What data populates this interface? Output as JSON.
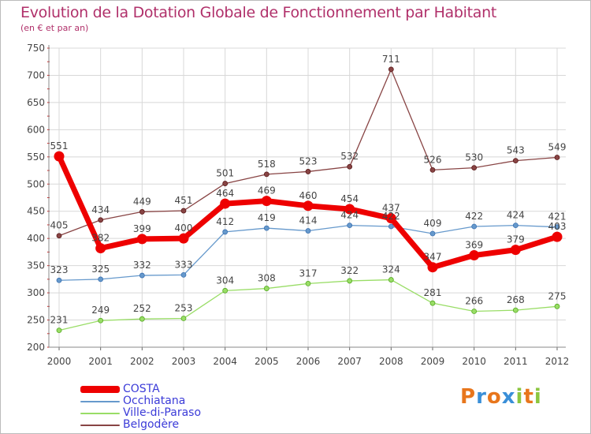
{
  "header": {
    "title": "Evolution de la Dotation Globale de Fonctionnement par Habitant",
    "subtitle": "(en € et par an)"
  },
  "logo": {
    "text": "Proxiti"
  },
  "colors": {
    "title": "#b0306a",
    "legend_text": "#3b3bd8",
    "grid": "#d8d8d8",
    "axis_tick_red": "#cc2222"
  },
  "chart_data": {
    "type": "line",
    "title": "Evolution de la Dotation Globale de Fonctionnement par Habitant",
    "subtitle": "(en € et par an)",
    "xlabel": "",
    "ylabel": "",
    "ylim": [
      200,
      750
    ],
    "yticks": [
      200,
      250,
      300,
      350,
      400,
      450,
      500,
      550,
      600,
      650,
      700,
      750
    ],
    "grid": true,
    "legend_position": "bottom-left",
    "x": [
      "2000",
      "2001",
      "2002",
      "2003",
      "2004",
      "2005",
      "2006",
      "2007",
      "2008",
      "2009",
      "2010",
      "2011",
      "2012"
    ],
    "series": [
      {
        "name": "COSTA",
        "color": "#ee0000",
        "values": [
          551,
          382,
          399,
          400,
          464,
          469,
          460,
          454,
          437,
          347,
          369,
          379,
          403
        ],
        "bold": true
      },
      {
        "name": "Occhiatana",
        "color": "#6699cc",
        "values": [
          323,
          325,
          332,
          333,
          412,
          419,
          414,
          424,
          422,
          409,
          422,
          424,
          421
        ]
      },
      {
        "name": "Ville-di-Paraso",
        "color": "#99dd66",
        "values": [
          231,
          249,
          252,
          253,
          304,
          308,
          317,
          322,
          324,
          281,
          266,
          268,
          275
        ]
      },
      {
        "name": "Belgodère",
        "color": "#884444",
        "values": [
          405,
          434,
          449,
          451,
          501,
          518,
          523,
          532,
          711,
          526,
          530,
          543,
          549
        ]
      }
    ]
  }
}
